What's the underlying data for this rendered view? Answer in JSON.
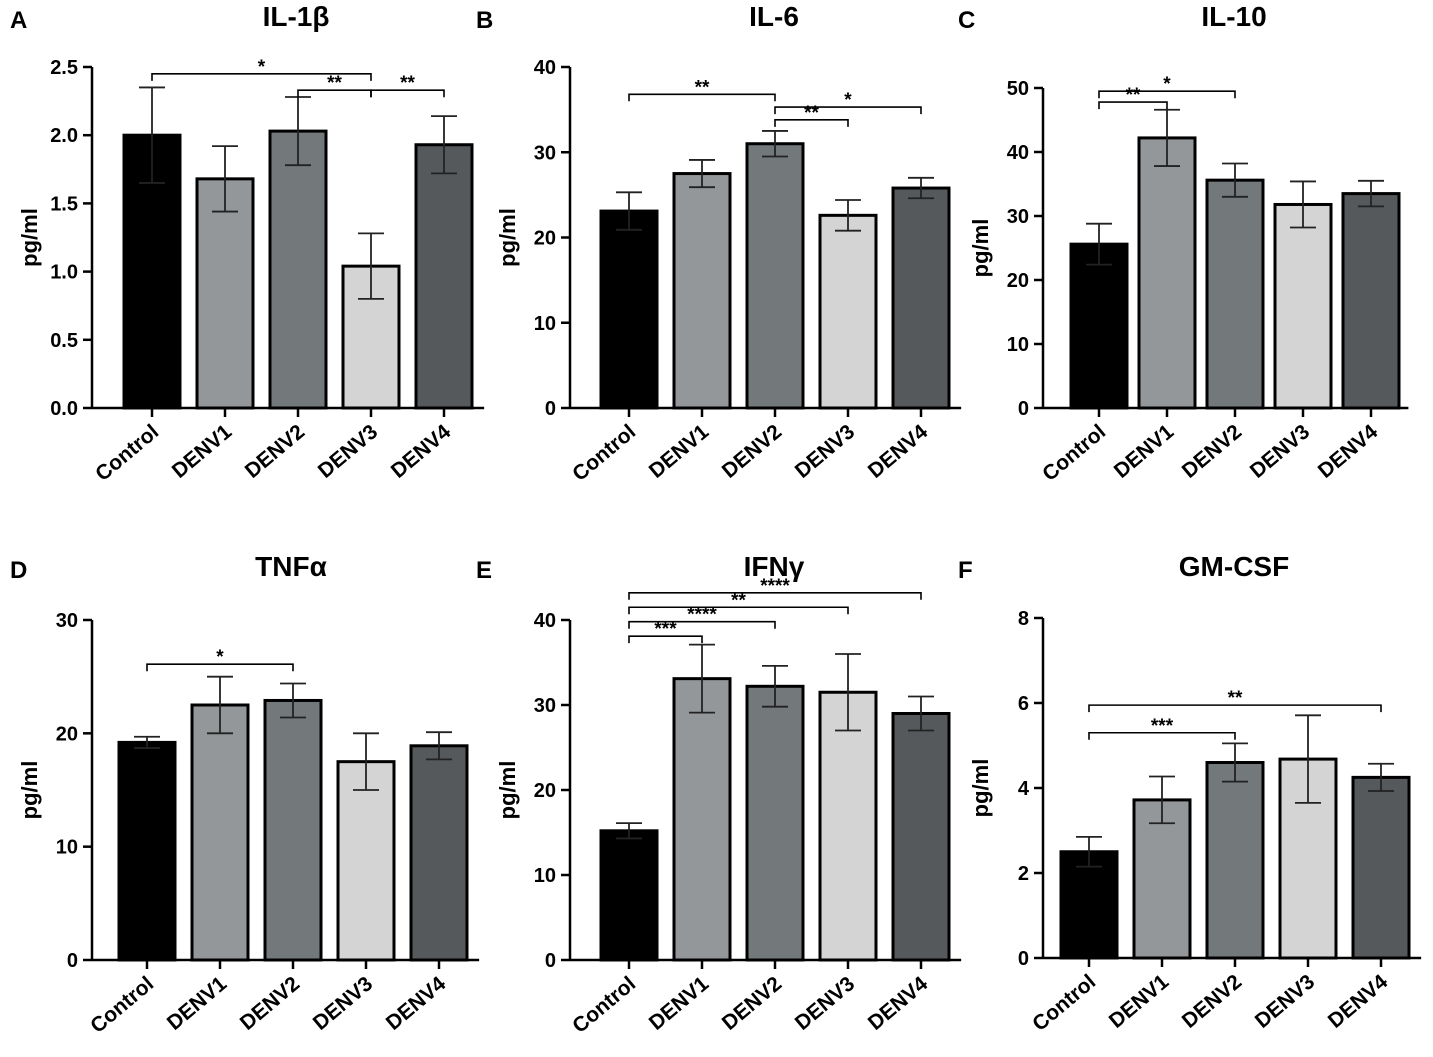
{
  "figure": {
    "categories": [
      "Control",
      "DENV1",
      "DENV2",
      "DENV3",
      "DENV4"
    ],
    "bar_colors": [
      "#000000",
      "#94979a",
      "#73787b",
      "#d3d4d3",
      "#55595c"
    ]
  },
  "chart_data": [
    {
      "panel": "A",
      "type": "bar",
      "title": "IL-1β",
      "ylabel": "pg/ml",
      "ylim": [
        0,
        2.5
      ],
      "yticks": [
        "0.0",
        "0.5",
        "1.0",
        "1.5",
        "2.0",
        "2.5"
      ],
      "ytick_step": 0.5,
      "categories": [
        "Control",
        "DENV1",
        "DENV2",
        "DENV3",
        "DENV4"
      ],
      "values": [
        2.0,
        1.68,
        2.03,
        1.04,
        1.93
      ],
      "errors": [
        0.35,
        0.24,
        0.25,
        0.24,
        0.21
      ],
      "significance": [
        {
          "from": 0,
          "to": 3,
          "label": "*",
          "y": 2.45
        },
        {
          "from": 2,
          "to": 3,
          "label": "**",
          "y": 2.33
        },
        {
          "from": 3,
          "to": 4,
          "label": "**",
          "y": 2.33
        }
      ]
    },
    {
      "panel": "B",
      "type": "bar",
      "title": "IL-6",
      "ylabel": "pg/ml",
      "ylim": [
        0,
        40
      ],
      "yticks": [
        "0",
        "10",
        "20",
        "30",
        "40"
      ],
      "ytick_step": 10,
      "categories": [
        "Control",
        "DENV1",
        "DENV2",
        "DENV3",
        "DENV4"
      ],
      "values": [
        23.1,
        27.5,
        31.0,
        22.6,
        25.8
      ],
      "errors": [
        2.2,
        1.6,
        1.5,
        1.8,
        1.2
      ],
      "significance": [
        {
          "from": 0,
          "to": 2,
          "label": "**",
          "y": 36.8
        },
        {
          "from": 2,
          "to": 4,
          "label": "*",
          "y": 35.3
        },
        {
          "from": 2,
          "to": 3,
          "label": "**",
          "y": 33.8
        }
      ]
    },
    {
      "panel": "C",
      "type": "bar",
      "title": "IL-10",
      "ylabel": "pg/ml",
      "ylim": [
        0,
        50
      ],
      "yticks": [
        "0",
        "10",
        "20",
        "30",
        "40",
        "50"
      ],
      "ytick_step": 10,
      "categories": [
        "Control",
        "DENV1",
        "DENV2",
        "DENV3",
        "DENV4"
      ],
      "values": [
        25.6,
        42.2,
        35.6,
        31.8,
        33.5
      ],
      "errors": [
        3.2,
        4.4,
        2.6,
        3.6,
        2.0
      ],
      "significance": [
        {
          "from": 0,
          "to": 2,
          "label": "*",
          "y": 49.5
        },
        {
          "from": 0,
          "to": 1,
          "label": "**",
          "y": 47.8
        }
      ]
    },
    {
      "panel": "D",
      "type": "bar",
      "title": "TNFα",
      "ylabel": "pg/ml",
      "ylim": [
        0,
        30
      ],
      "yticks": [
        "0",
        "10",
        "20",
        "30"
      ],
      "ytick_step": 10,
      "categories": [
        "Control",
        "DENV1",
        "DENV2",
        "DENV3",
        "DENV4"
      ],
      "values": [
        19.2,
        22.5,
        22.9,
        17.5,
        18.9
      ],
      "errors": [
        0.5,
        2.5,
        1.5,
        2.5,
        1.2
      ],
      "significance": [
        {
          "from": 0,
          "to": 2,
          "label": "*",
          "y": 26.1
        }
      ]
    },
    {
      "panel": "E",
      "type": "bar",
      "title": "IFNγ",
      "ylabel": "pg/ml",
      "ylim": [
        0,
        40
      ],
      "yticks": [
        "0",
        "10",
        "20",
        "30",
        "40"
      ],
      "ytick_step": 10,
      "categories": [
        "Control",
        "DENV1",
        "DENV2",
        "DENV3",
        "DENV4"
      ],
      "values": [
        15.2,
        33.1,
        32.2,
        31.5,
        29.0
      ],
      "errors": [
        0.9,
        4.0,
        2.4,
        4.5,
        2.0
      ],
      "significance": [
        {
          "from": 0,
          "to": 4,
          "label": "****",
          "y": 43.2
        },
        {
          "from": 0,
          "to": 3,
          "label": "**",
          "y": 41.5
        },
        {
          "from": 0,
          "to": 2,
          "label": "****",
          "y": 39.8
        },
        {
          "from": 0,
          "to": 1,
          "label": "***",
          "y": 38.1
        }
      ]
    },
    {
      "panel": "F",
      "type": "bar",
      "title": "GM-CSF",
      "ylabel": "pg/ml",
      "ylim": [
        0,
        8
      ],
      "yticks": [
        "0",
        "2",
        "4",
        "6",
        "8"
      ],
      "ytick_step": 2,
      "categories": [
        "Control",
        "DENV1",
        "DENV2",
        "DENV3",
        "DENV4"
      ],
      "values": [
        2.5,
        3.72,
        4.6,
        4.68,
        4.25
      ],
      "errors": [
        0.35,
        0.55,
        0.45,
        1.03,
        0.32
      ],
      "significance": [
        {
          "from": 0,
          "to": 4,
          "label": "**",
          "y": 5.95
        },
        {
          "from": 0,
          "to": 2,
          "label": "***",
          "y": 5.3
        }
      ]
    }
  ]
}
